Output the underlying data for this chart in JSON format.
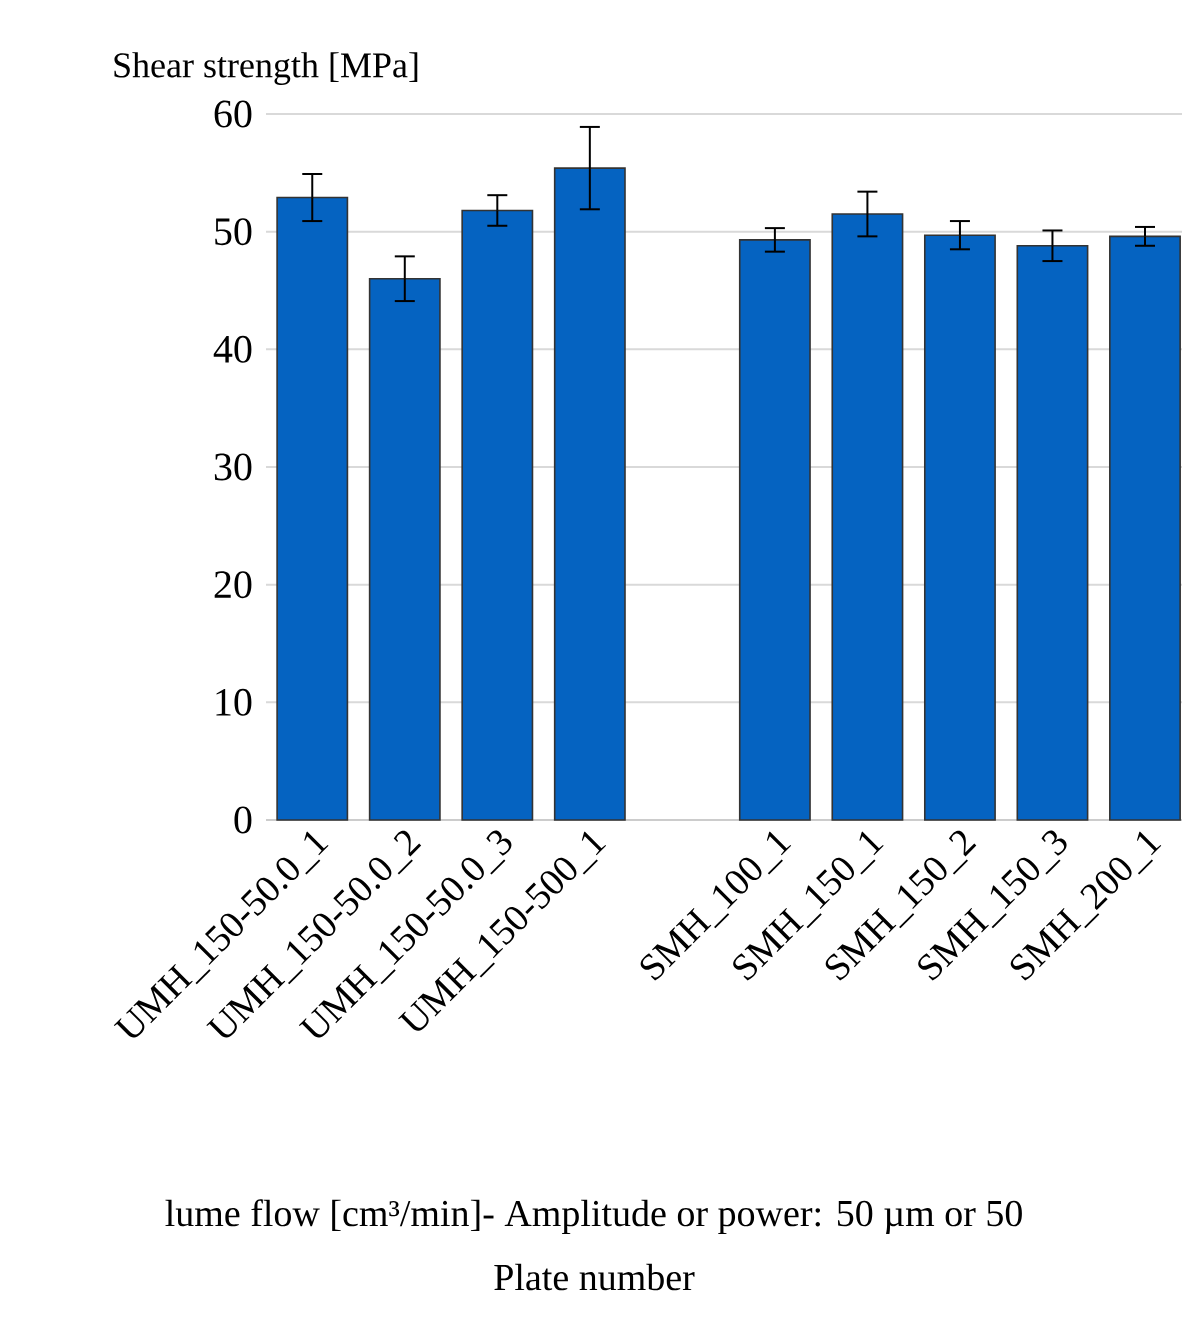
{
  "chart_data": {
    "type": "bar",
    "ylabel": "Shear strength [MPa]",
    "annotations": [
      "lume flow [cm³/min]- Amplitude or power: 50 µm or 50",
      "Plate number"
    ],
    "categories": [
      "UMH_150-50.0_1",
      "UMH_150-50.0_2",
      "UMH_150-50.0_3",
      "UMH_150-500_1",
      null,
      "SMH_100_1",
      "SMH_150_1",
      "SMH_150_2",
      "SMH_150_3",
      "SMH_200_1"
    ],
    "values": [
      52.9,
      46.0,
      51.8,
      55.4,
      null,
      49.3,
      51.5,
      49.7,
      48.8,
      49.6
    ],
    "errors": [
      2.0,
      1.9,
      1.3,
      3.5,
      null,
      1.0,
      1.9,
      1.2,
      1.3,
      0.8
    ],
    "color": "#0563c1",
    "ylim": [
      0,
      60
    ],
    "yticks": [
      0,
      10,
      20,
      30,
      40,
      50,
      60
    ],
    "grid": "y"
  }
}
